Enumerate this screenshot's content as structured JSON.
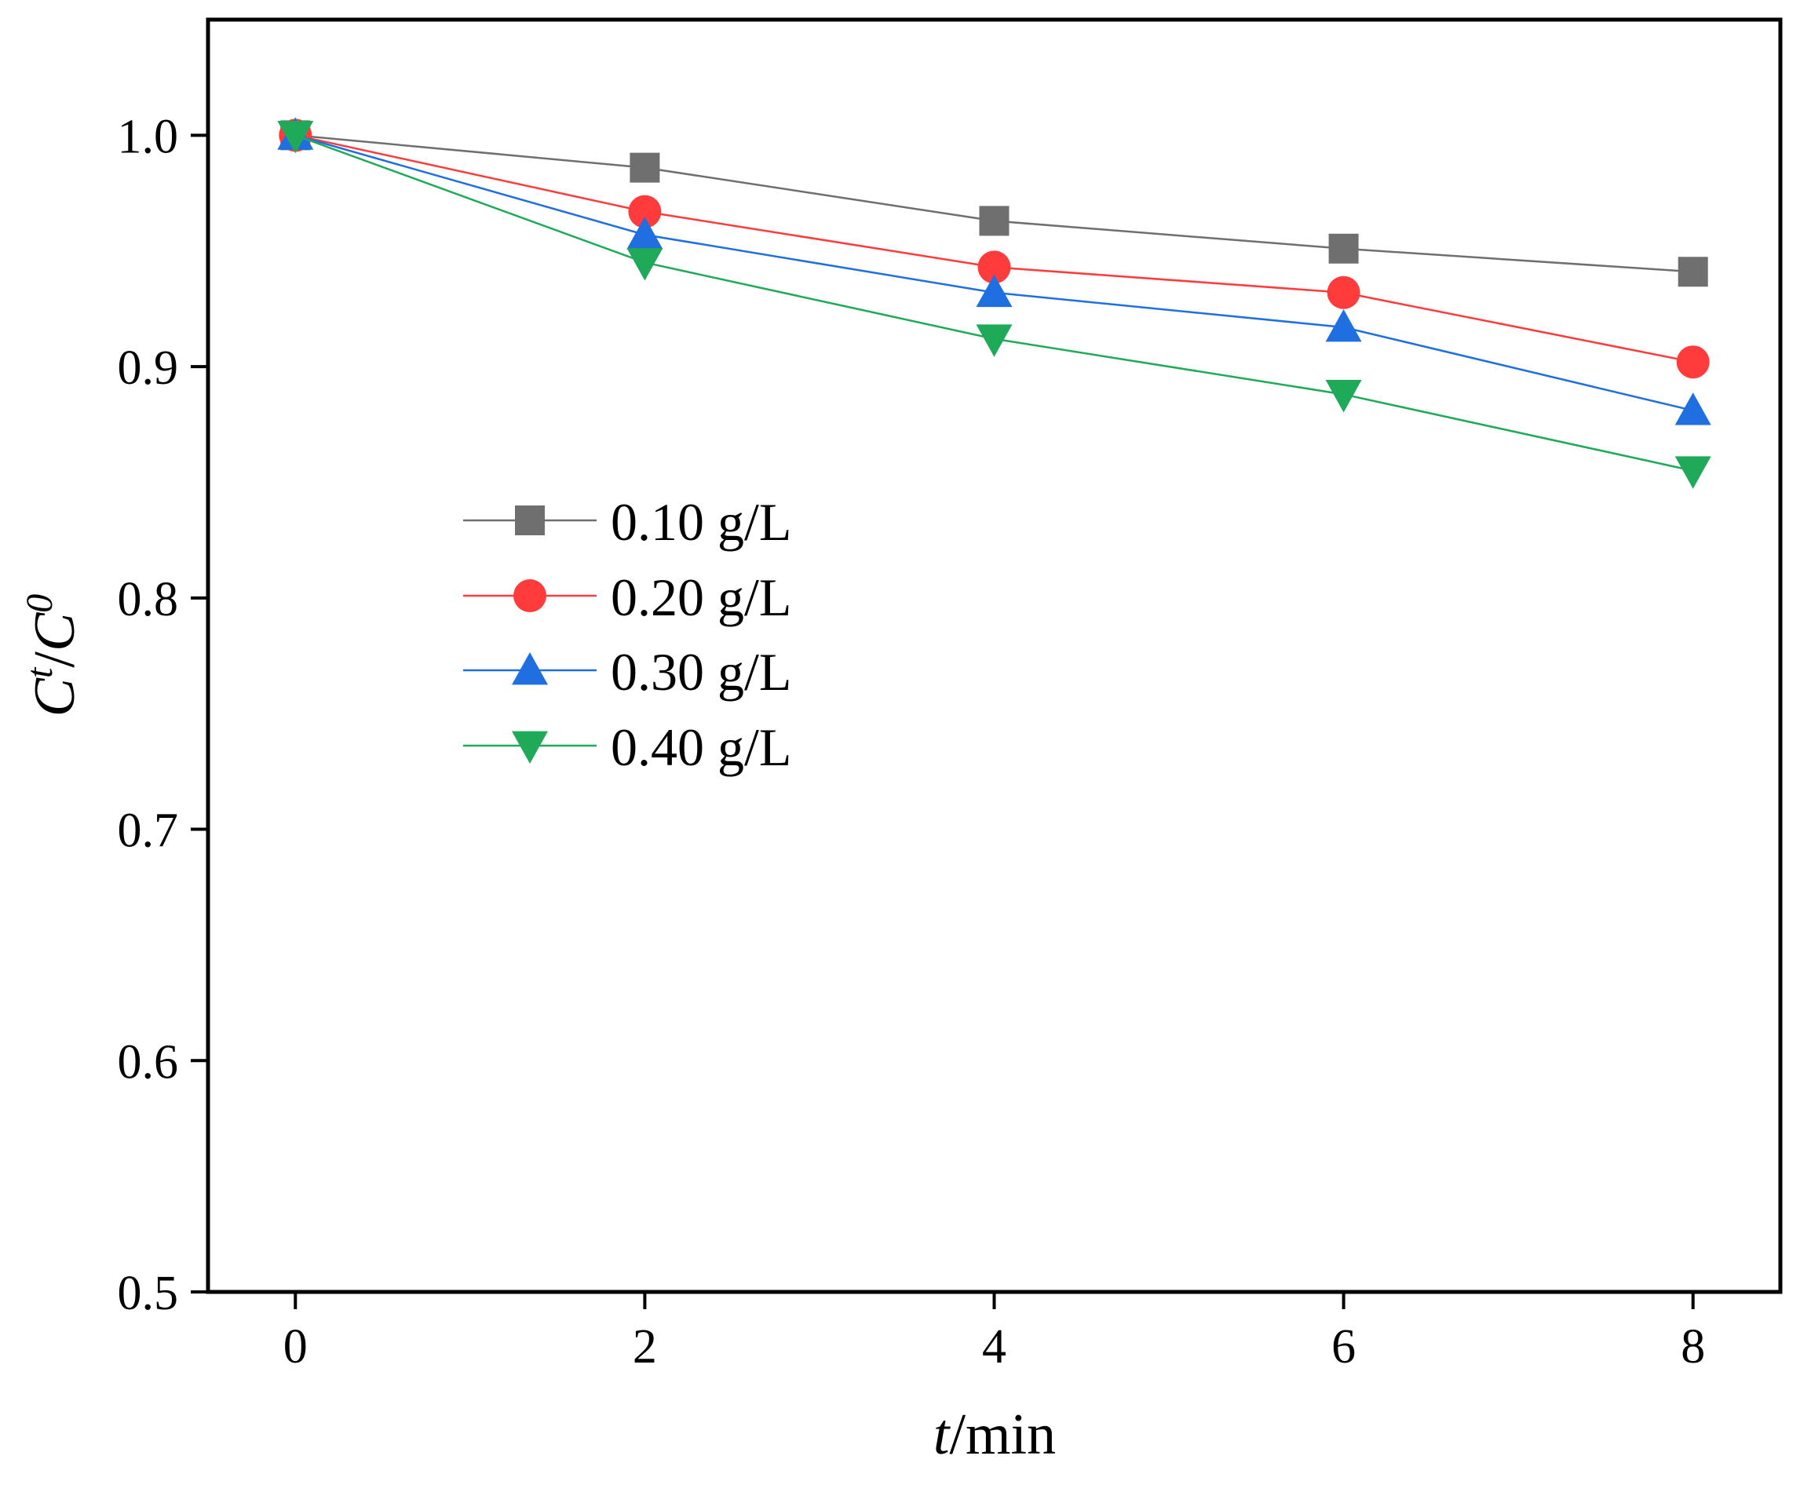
{
  "chart_data": {
    "type": "line",
    "xlabel": {
      "italic": "t",
      "rest": "/min"
    },
    "ylabel": {
      "c1": "C",
      "sup1": "t",
      "slash": "/",
      "c2": "C",
      "sup2": "0"
    },
    "xlim": [
      -0.5,
      8.5
    ],
    "ylim": [
      0.5,
      1.05
    ],
    "x_ticks": [
      "0",
      "2",
      "4",
      "6",
      "8"
    ],
    "y_ticks": [
      "0.5",
      "0.6",
      "0.7",
      "0.8",
      "0.9",
      "1.0"
    ],
    "x": [
      0,
      2,
      4,
      6,
      8
    ],
    "series": [
      {
        "name": "0.10 g/L",
        "marker": "square",
        "color": "#6f6f6f",
        "values": [
          1.0,
          0.986,
          0.963,
          0.951,
          0.941
        ]
      },
      {
        "name": "0.20 g/L",
        "marker": "circle",
        "color": "#ff3b3b",
        "values": [
          1.0,
          0.967,
          0.943,
          0.932,
          0.902
        ]
      },
      {
        "name": "0.30 g/L",
        "marker": "triangle-up",
        "color": "#1f6fe0",
        "values": [
          1.0,
          0.957,
          0.932,
          0.917,
          0.881
        ]
      },
      {
        "name": "0.40 g/L",
        "marker": "triangle-down",
        "color": "#1faa5a",
        "values": [
          1.0,
          0.945,
          0.912,
          0.888,
          0.855
        ]
      }
    ],
    "legend_position": "center-left",
    "grid": false
  }
}
